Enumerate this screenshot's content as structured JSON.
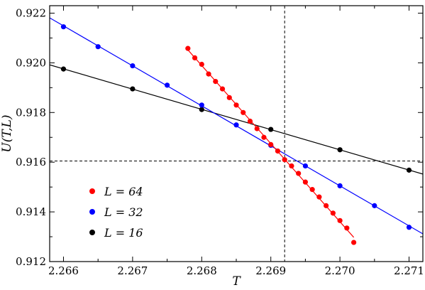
{
  "chart_data": {
    "type": "scatter",
    "xlabel": "T",
    "ylabel": "U(T,L)",
    "xlim": [
      2.2658,
      2.2712
    ],
    "ylim": [
      0.912,
      0.9223
    ],
    "x_ticks": [
      2.266,
      2.267,
      2.268,
      2.269,
      2.27,
      2.271
    ],
    "x_tick_labels": [
      "2.266",
      "2.267",
      "2.268",
      "2.269",
      "2.270",
      "2.271"
    ],
    "y_ticks": [
      0.912,
      0.914,
      0.916,
      0.918,
      0.92,
      0.922
    ],
    "y_tick_labels": [
      "0.912",
      "0.914",
      "0.916",
      "0.918",
      "0.920",
      "0.922"
    ],
    "grid": false,
    "legend_position": "bottom-left",
    "reference_lines": {
      "vertical_x": 2.2692,
      "horizontal_y": 0.91605
    },
    "series": [
      {
        "name": "L = 64",
        "color": "#ff0000",
        "x": [
          2.2678,
          2.2679,
          2.268,
          2.2681,
          2.2682,
          2.2683,
          2.2684,
          2.2685,
          2.2686,
          2.2687,
          2.2688,
          2.2689,
          2.269,
          2.2691,
          2.2692,
          2.2693,
          2.2694,
          2.2695,
          2.2696,
          2.2697,
          2.2698,
          2.2699,
          2.27,
          2.2701,
          2.2702
        ],
        "y": [
          0.92058,
          0.9202,
          0.91994,
          0.91955,
          0.91925,
          0.91895,
          0.9186,
          0.9183,
          0.918,
          0.91765,
          0.91735,
          0.917,
          0.91671,
          0.91645,
          0.9161,
          0.91585,
          0.91555,
          0.9152,
          0.9149,
          0.9146,
          0.91425,
          0.91395,
          0.91365,
          0.91335,
          0.91277
        ]
      },
      {
        "name": "L = 32",
        "color": "#0000ff",
        "x": [
          2.266,
          2.2665,
          2.267,
          2.2675,
          2.268,
          2.2685,
          2.269,
          2.2695,
          2.27,
          2.2705,
          2.271
        ],
        "y": [
          0.92145,
          0.92065,
          0.91988,
          0.9191,
          0.9183,
          0.9175,
          0.91668,
          0.91585,
          0.91505,
          0.91425,
          0.91338
        ]
      },
      {
        "name": "L = 16",
        "color": "#000000",
        "x": [
          2.266,
          2.267,
          2.268,
          2.269,
          2.27,
          2.271
        ],
        "y": [
          0.91975,
          0.91895,
          0.91812,
          0.91732,
          0.9165,
          0.91568
        ]
      }
    ]
  }
}
